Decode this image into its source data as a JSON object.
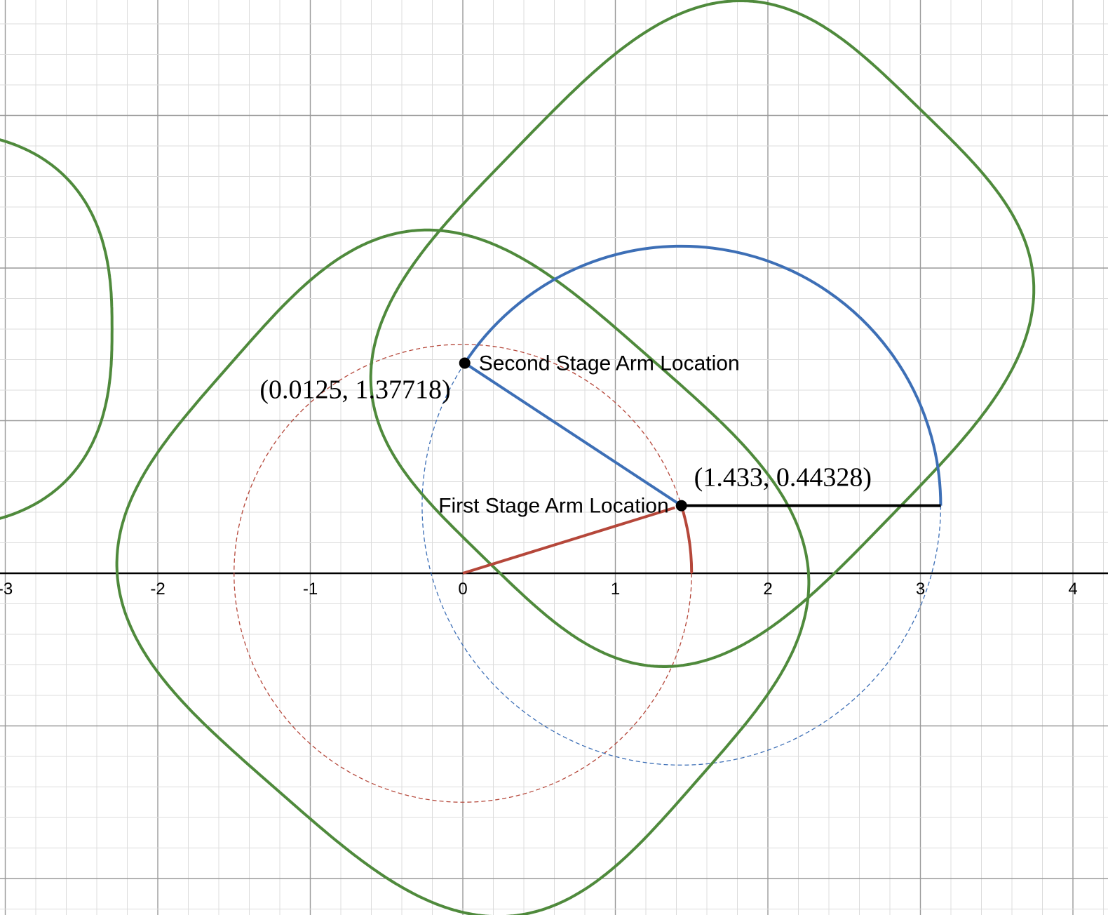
{
  "graph": {
    "x_range": [
      -3.03,
      4.2
    ],
    "y_range": [
      -2.2,
      3.8
    ],
    "minor_grid_step": 0.2,
    "major_grid_step": 1,
    "x_tick_labels": [
      "-3",
      "-2",
      "-1",
      "0",
      "1",
      "2",
      "3",
      "4"
    ],
    "x_tick_values": [
      -3,
      -2,
      -1,
      0,
      1,
      2,
      3,
      4
    ],
    "colors": {
      "grid_major": "#9a9a9a",
      "grid_minor": "#dcdcdc",
      "axis": "#000000",
      "green": "#4f8a3c",
      "blue": "#3d6fb6",
      "red": "#b5473a",
      "point": "#000000"
    }
  },
  "points": {
    "first_stage": {
      "label": "First Stage Arm Location",
      "coord_label": "(1.433, 0.44328)",
      "x": 1.433,
      "y": 0.44328
    },
    "second_stage": {
      "label": "Second Stage Arm Location",
      "coord_label": "(0.0125, 1.37718)",
      "x": 0.0125,
      "y": 1.37718
    }
  },
  "shapes": {
    "red_dashed_circle": {
      "cx": 0,
      "cy": 0,
      "r": 1.5
    },
    "blue_dashed_circle": {
      "cx": 1.433,
      "cy": 0.44328,
      "r": 1.7
    },
    "red_arm_angle_end": 0.2997,
    "green_curve_1": {
      "cx": 0,
      "cy": 0,
      "a": 2.05,
      "b": 1.87,
      "n": 3.4,
      "rot": -0.72
    },
    "green_curve_2": {
      "cx": 1.57,
      "cy": 1.57,
      "a": 2.05,
      "b": 1.72,
      "n": 3.4,
      "rot": 0.8
    },
    "green_curve_3": {
      "cx": -3.6,
      "cy": 1.6,
      "a": 1.3,
      "b": 1.3,
      "n": 2.6,
      "rot": 0.0
    }
  }
}
